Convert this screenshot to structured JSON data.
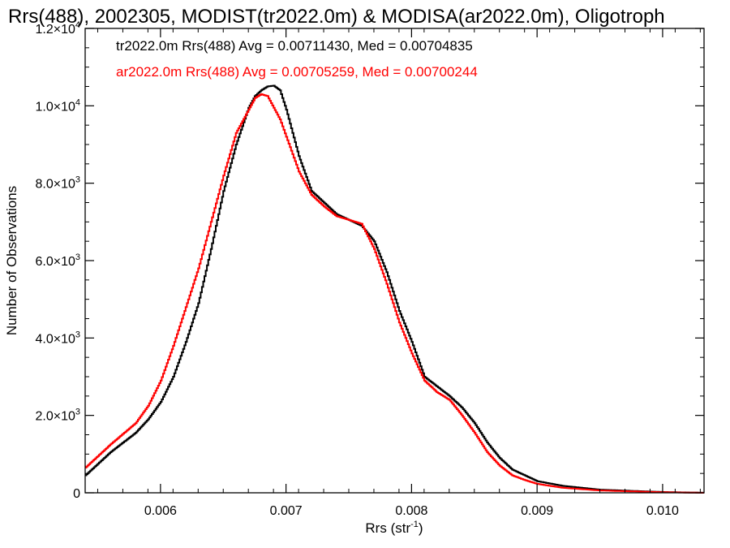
{
  "chart_data": {
    "type": "line",
    "title": "Rrs(488), 2002305, MODIST(tr2022.0m) & MODISA(ar2022.0m), Oligotroph",
    "xlabel": "Rrs (str",
    "xlabel_sup": "-1",
    "xlabel_end": ")",
    "ylabel": "Number of Observations",
    "xlim": [
      0.0054,
      0.01033
    ],
    "ylim": [
      0,
      12000
    ],
    "xticks": [
      0.006,
      0.007,
      0.008,
      0.009,
      0.01
    ],
    "xtick_labels": [
      "0.006",
      "0.007",
      "0.008",
      "0.009",
      "0.010"
    ],
    "yticks": [
      {
        "value": 0,
        "mant": "0",
        "exp": ""
      },
      {
        "value": 2000,
        "mant": "2.0×10",
        "exp": "3"
      },
      {
        "value": 4000,
        "mant": "4.0×10",
        "exp": "3"
      },
      {
        "value": 6000,
        "mant": "6.0×10",
        "exp": "3"
      },
      {
        "value": 8000,
        "mant": "8.0×10",
        "exp": "3"
      },
      {
        "value": 10000,
        "mant": "1.0×10",
        "exp": "4"
      },
      {
        "value": 12000,
        "mant": "1.2×10",
        "exp": "4"
      }
    ],
    "legend_placement": "top-left",
    "grid": false,
    "series": [
      {
        "name": "tr2022.0m Rrs(488) Avg = 0.00711430, Med = 0.00704835",
        "color": "#000000",
        "x": [
          0.0054,
          0.0056,
          0.0058,
          0.0059,
          0.006,
          0.0061,
          0.0062,
          0.0063,
          0.0064,
          0.0065,
          0.0066,
          0.0067,
          0.00675,
          0.0068,
          0.00685,
          0.0069,
          0.00695,
          0.007,
          0.0071,
          0.0072,
          0.0073,
          0.0074,
          0.0075,
          0.0076,
          0.0077,
          0.0078,
          0.0079,
          0.008,
          0.0081,
          0.0082,
          0.0083,
          0.0084,
          0.0085,
          0.0086,
          0.0087,
          0.0088,
          0.0089,
          0.009,
          0.0092,
          0.0095,
          0.01,
          0.01033
        ],
        "y": [
          450,
          1050,
          1550,
          1900,
          2350,
          3000,
          3900,
          4900,
          6300,
          7800,
          9000,
          9950,
          10250,
          10400,
          10500,
          10520,
          10400,
          9900,
          8700,
          7800,
          7500,
          7200,
          7050,
          6900,
          6500,
          5700,
          4700,
          3900,
          3000,
          2750,
          2500,
          2200,
          1800,
          1300,
          900,
          600,
          450,
          300,
          180,
          80,
          20,
          0
        ]
      },
      {
        "name": "ar2022.0m Rrs(488) Avg = 0.00705259, Med = 0.00700244",
        "color": "#ff0000",
        "x": [
          0.0054,
          0.0056,
          0.0058,
          0.0059,
          0.006,
          0.0061,
          0.0062,
          0.0063,
          0.0064,
          0.0065,
          0.0066,
          0.0067,
          0.00675,
          0.0068,
          0.00685,
          0.0069,
          0.00695,
          0.007,
          0.0071,
          0.0072,
          0.0073,
          0.0074,
          0.0075,
          0.0076,
          0.0077,
          0.0078,
          0.0079,
          0.008,
          0.0081,
          0.0082,
          0.0083,
          0.0084,
          0.0085,
          0.0086,
          0.0087,
          0.0088,
          0.0089,
          0.009,
          0.0092,
          0.0095,
          0.01,
          0.01033
        ],
        "y": [
          650,
          1250,
          1800,
          2250,
          2900,
          3800,
          4800,
          5800,
          7000,
          8200,
          9300,
          9900,
          10200,
          10300,
          10250,
          9950,
          9650,
          9200,
          8300,
          7700,
          7400,
          7150,
          7050,
          6950,
          6300,
          5400,
          4400,
          3600,
          2900,
          2600,
          2400,
          2000,
          1550,
          1050,
          700,
          450,
          330,
          230,
          130,
          60,
          15,
          0
        ]
      }
    ]
  }
}
